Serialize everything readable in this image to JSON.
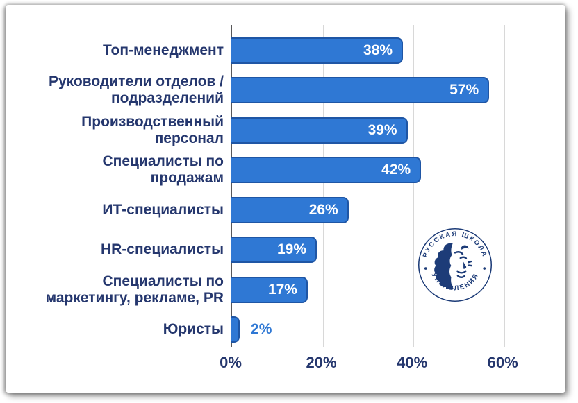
{
  "chart_data": {
    "type": "bar",
    "orientation": "horizontal",
    "categories": [
      "Топ-менеджмент",
      "Руководители отделов /\nподразделений",
      "Производственный\nперсонал",
      "Специалисты по\nпродажам",
      "ИТ-специалисты",
      "HR-специалисты",
      "Специалисты по\nмаркетингу, рекламе, PR",
      "Юристы"
    ],
    "values": [
      38,
      57,
      39,
      42,
      26,
      19,
      17,
      2
    ],
    "value_labels": [
      "38%",
      "57%",
      "39%",
      "42%",
      "26%",
      "19%",
      "17%",
      "2%"
    ],
    "x_tick_labels": [
      "0%",
      "20%",
      "40%",
      "60%"
    ],
    "x_tick_values": [
      0,
      20,
      40,
      60
    ],
    "xlim": [
      0,
      70
    ],
    "grid": "vertical-gridlines",
    "legend": "none",
    "colors": {
      "bar_fill": "#2F78D4",
      "bar_border": "#1F56A5",
      "category_label": "#25376E",
      "value_label_inside": "#FFFFFF",
      "value_label_outside": "#2F78D4",
      "tick_label": "#25376E",
      "gridline": "#D8D8D8",
      "axis_line": "#58585A"
    }
  },
  "logo": {
    "top_text": "РУССКАЯ ШКОЛА",
    "bottom_text": "УПРАВЛЕНИЯ",
    "color": "#1D3C78"
  }
}
